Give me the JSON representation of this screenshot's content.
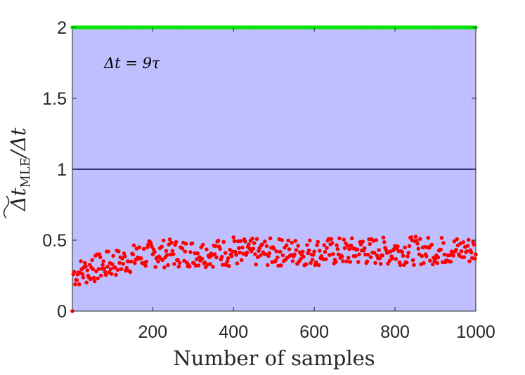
{
  "chart_data": {
    "type": "scatter",
    "title": "",
    "xlabel": "Number of samples",
    "ylabel": "Δt̃MLE/Δt",
    "ylabel_parts": {
      "base": "Δt",
      "sub": "MLE",
      "tail": "/Δt"
    },
    "xlim": [
      1,
      1000
    ],
    "ylim": [
      0,
      2
    ],
    "xticks": [
      200,
      400,
      600,
      800,
      1000
    ],
    "yticks": [
      0,
      0.5,
      1,
      1.5,
      2
    ],
    "ytick_labels": [
      "0",
      "0.5",
      "1",
      "1.5",
      "2"
    ],
    "grid": false,
    "legend": "none",
    "annotation": "Δt = 9τ",
    "annotation_parts": {
      "lhs": "Δt",
      "rhs": "9τ"
    },
    "background_color": "#BFBFFF",
    "reference_line": {
      "y": 1,
      "color": "#000040"
    },
    "series": [
      {
        "color": "#00E600",
        "marker": "dot",
        "x_range": [
          1,
          1000
        ],
        "count": 200,
        "y_constant": 2
      },
      {
        "color": "#FF0000",
        "marker": "dot",
        "x": [
          1,
          10,
          20,
          30,
          40,
          50,
          60,
          70,
          80,
          90,
          100,
          120,
          140,
          160,
          180,
          200,
          220,
          240,
          260,
          280,
          300,
          320,
          340,
          360,
          380,
          400,
          420,
          440,
          460,
          480,
          500,
          520,
          540,
          560,
          580,
          600,
          620,
          640,
          660,
          680,
          700,
          720,
          740,
          760,
          780,
          800,
          820,
          840,
          860,
          880,
          900,
          920,
          940,
          960,
          980,
          1000
        ],
        "y": [
          0.0,
          0.22,
          0.27,
          0.31,
          0.25,
          0.36,
          0.28,
          0.38,
          0.3,
          0.42,
          0.33,
          0.38,
          0.35,
          0.44,
          0.34,
          0.4,
          0.37,
          0.47,
          0.36,
          0.42,
          0.34,
          0.45,
          0.38,
          0.49,
          0.41,
          0.52,
          0.36,
          0.44,
          0.38,
          0.4,
          0.44,
          0.5,
          0.39,
          0.46,
          0.33,
          0.42,
          0.37,
          0.47,
          0.4,
          0.35,
          0.44,
          0.49,
          0.38,
          0.43,
          0.41,
          0.46,
          0.39,
          0.52,
          0.4,
          0.45,
          0.37,
          0.48,
          0.42,
          0.39,
          0.46,
          0.4
        ]
      }
    ]
  }
}
